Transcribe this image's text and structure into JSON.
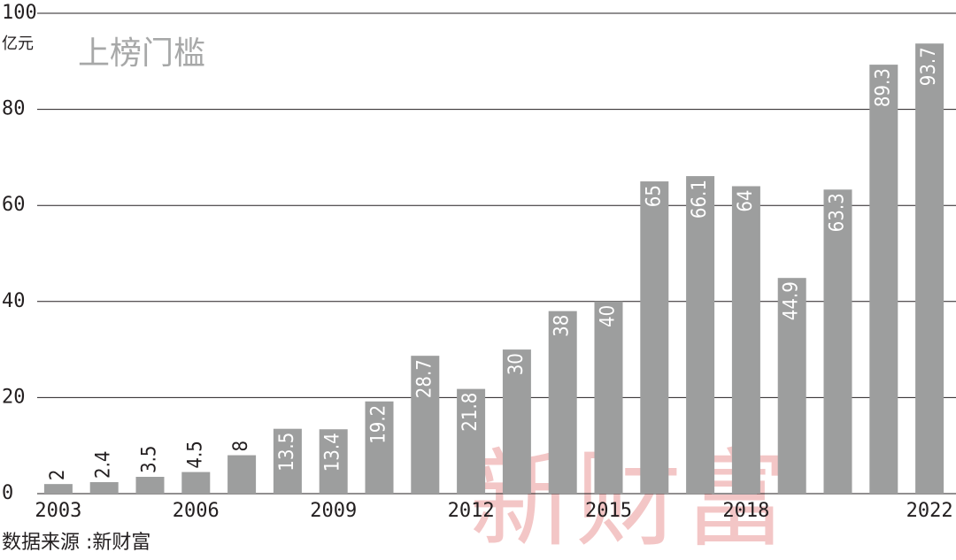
{
  "chart_data": {
    "type": "bar",
    "title": "上榜门槛",
    "y_label": "亿元",
    "categories": [
      "2003",
      null,
      null,
      "2006",
      null,
      null,
      "2009",
      null,
      null,
      "2012",
      null,
      null,
      "2015",
      null,
      null,
      "2018",
      null,
      null,
      null,
      "2022"
    ],
    "values": [
      2,
      2.4,
      3.5,
      4.5,
      8,
      13.5,
      13.4,
      19.2,
      28.7,
      21.8,
      30,
      38,
      40,
      65,
      66.1,
      64,
      44.9,
      63.3,
      89.3,
      93.7
    ],
    "color": "#9d9e9e",
    "ylim": [
      0,
      100
    ],
    "yticks": [
      0,
      20,
      40,
      60,
      80,
      100
    ],
    "grid": true
  },
  "source": "数据来源 :新财富",
  "watermark": "新财富"
}
